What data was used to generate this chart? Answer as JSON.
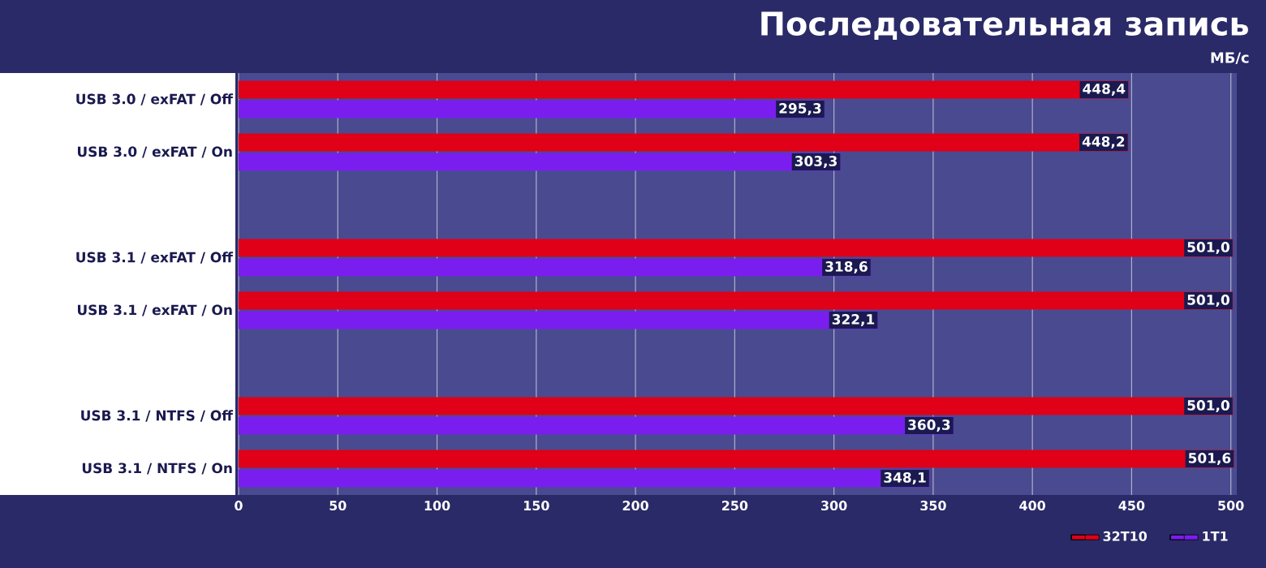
{
  "chart_data": {
    "type": "bar",
    "orientation": "horizontal",
    "title": "Последовательная запись",
    "subtitle": "МБ/с",
    "categories": [
      "USB 3.0 / exFAT / Off",
      "USB 3.0 / exFAT / On",
      null,
      "USB 3.1 / exFAT / Off",
      "USB 3.1 / exFAT / On",
      null,
      "USB 3.1 / NTFS / Off",
      "USB 3.1 / NTFS / On"
    ],
    "series": [
      {
        "name": "32T10",
        "color": "#e00018",
        "values": [
          448.4,
          448.2,
          null,
          501.0,
          501.0,
          null,
          501.0,
          501.6
        ],
        "value_labels": [
          "448,4",
          "448,2",
          null,
          "501,0",
          "501,0",
          null,
          "501,0",
          "501,6"
        ]
      },
      {
        "name": "1T1",
        "color": "#7a1ef0",
        "values": [
          295.3,
          303.3,
          null,
          318.6,
          322.1,
          null,
          360.3,
          348.1
        ],
        "value_labels": [
          "295,3",
          "303,3",
          null,
          "318,6",
          "322,1",
          null,
          "360,3",
          "348,1"
        ]
      }
    ],
    "xlim": [
      0,
      503
    ],
    "xticks": [
      0,
      50,
      100,
      150,
      200,
      250,
      300,
      350,
      400,
      450,
      500
    ],
    "grid": "x",
    "legend": "bottom right"
  }
}
